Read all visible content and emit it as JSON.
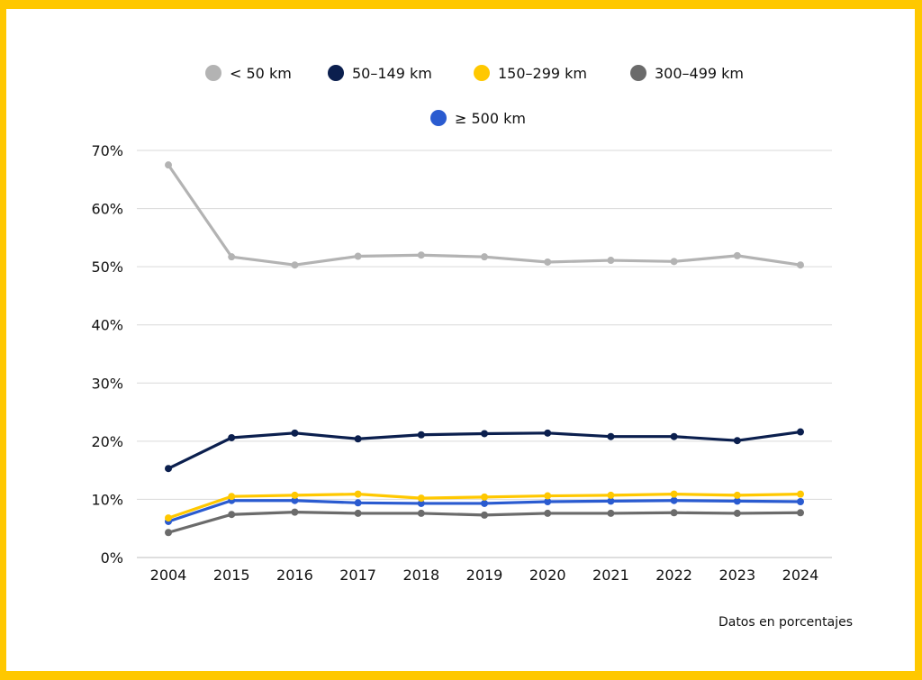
{
  "chart_data": {
    "type": "line",
    "title": "",
    "xlabel": "",
    "ylabel": "",
    "note": "Datos en porcentajes",
    "x": [
      "2004",
      "2015",
      "2016",
      "2017",
      "2018",
      "2019",
      "2020",
      "2021",
      "2022",
      "2023",
      "2024"
    ],
    "ylim": [
      0,
      70
    ],
    "yticks": [
      0,
      10,
      20,
      30,
      40,
      50,
      60,
      70
    ],
    "ytick_labels": [
      "0%",
      "10%",
      "20%",
      "30%",
      "40%",
      "50%",
      "60%",
      "70%"
    ],
    "grid": true,
    "legend_position": "top-center",
    "series": [
      {
        "name": "< 50 km",
        "color": "#B3B3B3",
        "values": [
          67.5,
          51.7,
          50.3,
          51.8,
          52.0,
          51.7,
          50.8,
          51.1,
          50.9,
          51.9,
          50.3
        ]
      },
      {
        "name": "50–149 km",
        "color": "#0B1F4E",
        "values": [
          15.3,
          20.6,
          21.4,
          20.4,
          21.1,
          21.3,
          21.4,
          20.8,
          20.8,
          20.1,
          21.6
        ]
      },
      {
        "name": "150–299 km",
        "color": "#FFC800",
        "values": [
          6.8,
          10.5,
          10.7,
          10.9,
          10.2,
          10.4,
          10.6,
          10.7,
          10.9,
          10.7,
          10.9
        ]
      },
      {
        "name": "300–499 km",
        "color": "#6B6B6B",
        "values": [
          4.3,
          7.4,
          7.8,
          7.6,
          7.6,
          7.3,
          7.6,
          7.6,
          7.7,
          7.6,
          7.7
        ]
      },
      {
        "name": "≥ 500 km",
        "color": "#2A5BD0",
        "values": [
          6.2,
          9.8,
          9.8,
          9.4,
          9.3,
          9.3,
          9.6,
          9.7,
          9.8,
          9.7,
          9.6
        ]
      }
    ]
  },
  "page": {
    "border_color": "#FFC800",
    "background": "#FFFFFF"
  }
}
